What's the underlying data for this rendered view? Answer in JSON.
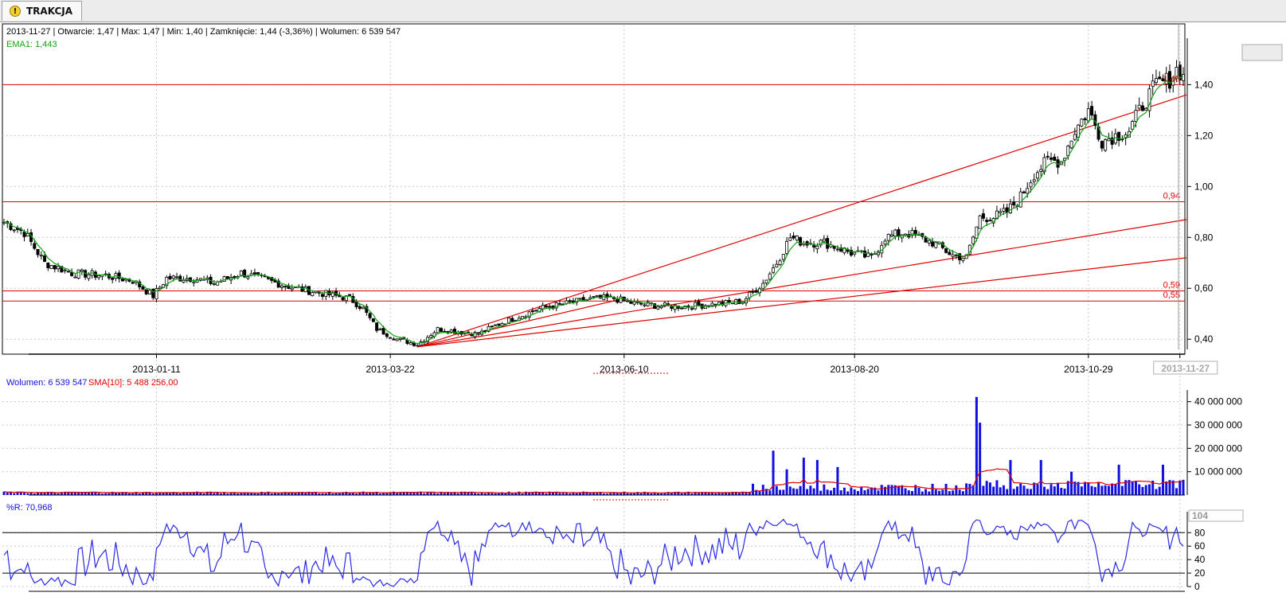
{
  "tab": {
    "label": "TRAKCJA",
    "icon": "warning-icon"
  },
  "info": {
    "line": "2013-11-27 | Otwarcie: 1,47 | Max: 1,47 | Min: 1,40 | Zamknięcie: 1,44 (-3,36%)   | Wolumen: 6 539 547",
    "ema_label": "EMA1: 1,443"
  },
  "volume_legend": {
    "volume": "Wolumen: 6 539 547",
    "sma": "SMA[10]: 5 488 256,00"
  },
  "wr_legend": "%R: 70,968",
  "colors": {
    "candle": "#000000",
    "ema": "#13a313",
    "levels": "#e00000",
    "volume": "#1010e0",
    "sma": "#e00000",
    "wr": "#2a2ae6",
    "grid": "#c8c8c8"
  },
  "chart_data": [
    {
      "type": "candlestick",
      "title": "",
      "x_tick_labels": [
        "2013-01-11",
        "2013-03-22",
        "2013-06-10",
        "2013-08-20",
        "2013-10-29",
        "2013-11-27"
      ],
      "y_tick_labels": [
        "1,40",
        "1,20",
        "1,00",
        "0,80",
        "0,60",
        "0,40"
      ],
      "ylim": [
        0.36,
        1.52
      ],
      "grid": true,
      "ema_period": 1,
      "horizontal_levels": [
        1.4,
        0.94,
        0.59,
        0.55
      ],
      "level_labels": [
        "1,40",
        "0,94",
        "0,59",
        "0,55"
      ],
      "close_anchors": [
        {
          "t": 0,
          "v": 0.86
        },
        {
          "t": 6,
          "v": 0.82
        },
        {
          "t": 12,
          "v": 0.7
        },
        {
          "t": 20,
          "v": 0.66
        },
        {
          "t": 30,
          "v": 0.65
        },
        {
          "t": 38,
          "v": 0.63
        },
        {
          "t": 44,
          "v": 0.57
        },
        {
          "t": 48,
          "v": 0.64
        },
        {
          "t": 56,
          "v": 0.64
        },
        {
          "t": 62,
          "v": 0.62
        },
        {
          "t": 70,
          "v": 0.66
        },
        {
          "t": 78,
          "v": 0.63
        },
        {
          "t": 86,
          "v": 0.6
        },
        {
          "t": 94,
          "v": 0.58
        },
        {
          "t": 102,
          "v": 0.56
        },
        {
          "t": 106,
          "v": 0.52
        },
        {
          "t": 110,
          "v": 0.44
        },
        {
          "t": 116,
          "v": 0.4
        },
        {
          "t": 122,
          "v": 0.38
        },
        {
          "t": 128,
          "v": 0.44
        },
        {
          "t": 134,
          "v": 0.43
        },
        {
          "t": 140,
          "v": 0.42
        },
        {
          "t": 146,
          "v": 0.46
        },
        {
          "t": 152,
          "v": 0.49
        },
        {
          "t": 158,
          "v": 0.52
        },
        {
          "t": 166,
          "v": 0.54
        },
        {
          "t": 174,
          "v": 0.56
        },
        {
          "t": 180,
          "v": 0.56
        },
        {
          "t": 186,
          "v": 0.54
        },
        {
          "t": 194,
          "v": 0.53
        },
        {
          "t": 202,
          "v": 0.53
        },
        {
          "t": 212,
          "v": 0.54
        },
        {
          "t": 218,
          "v": 0.55
        },
        {
          "t": 224,
          "v": 0.62
        },
        {
          "t": 228,
          "v": 0.7
        },
        {
          "t": 232,
          "v": 0.8
        },
        {
          "t": 236,
          "v": 0.78
        },
        {
          "t": 242,
          "v": 0.78
        },
        {
          "t": 250,
          "v": 0.74
        },
        {
          "t": 256,
          "v": 0.72
        },
        {
          "t": 260,
          "v": 0.8
        },
        {
          "t": 266,
          "v": 0.82
        },
        {
          "t": 274,
          "v": 0.78
        },
        {
          "t": 280,
          "v": 0.73
        },
        {
          "t": 284,
          "v": 0.72
        },
        {
          "t": 288,
          "v": 0.88
        },
        {
          "t": 292,
          "v": 0.88
        },
        {
          "t": 296,
          "v": 0.9
        },
        {
          "t": 300,
          "v": 0.96
        },
        {
          "t": 304,
          "v": 1.05
        },
        {
          "t": 308,
          "v": 1.1
        },
        {
          "t": 312,
          "v": 1.1
        },
        {
          "t": 316,
          "v": 1.22
        },
        {
          "t": 320,
          "v": 1.3
        },
        {
          "t": 324,
          "v": 1.18
        },
        {
          "t": 328,
          "v": 1.2
        },
        {
          "t": 332,
          "v": 1.22
        },
        {
          "t": 336,
          "v": 1.32
        },
        {
          "t": 340,
          "v": 1.4
        },
        {
          "t": 344,
          "v": 1.42
        },
        {
          "t": 346,
          "v": 1.46
        },
        {
          "t": 348,
          "v": 1.44
        }
      ],
      "trendlines": [
        {
          "from": [
            122,
            0.37
          ],
          "to": [
            "end",
            1.36
          ]
        },
        {
          "from": [
            122,
            0.37
          ],
          "to": [
            "end",
            0.87
          ]
        },
        {
          "from": [
            122,
            0.37
          ],
          "to": [
            "end",
            0.72
          ]
        },
        {
          "from": [
            122,
            0.37
          ],
          "to": [
            183,
            0.56
          ]
        }
      ]
    },
    {
      "type": "bar",
      "title": "",
      "series": [
        {
          "name": "Wolumen"
        },
        {
          "name": "SMA[10]"
        }
      ],
      "y_tick_labels": [
        "40 000 000",
        "30 000 000",
        "20 000 000",
        "10 000 000"
      ],
      "ylim": [
        0,
        45000000
      ],
      "volume_spikes": [
        {
          "t": 227,
          "v": 19000000
        },
        {
          "t": 231,
          "v": 11000000
        },
        {
          "t": 236,
          "v": 16000000
        },
        {
          "t": 240,
          "v": 15000000
        },
        {
          "t": 246,
          "v": 12000000
        },
        {
          "t": 287,
          "v": 42000000
        },
        {
          "t": 288,
          "v": 31000000
        },
        {
          "t": 297,
          "v": 15000000
        },
        {
          "t": 306,
          "v": 15000000
        },
        {
          "t": 315,
          "v": 10000000
        },
        {
          "t": 329,
          "v": 13000000
        },
        {
          "t": 342,
          "v": 13000000
        }
      ]
    },
    {
      "type": "line",
      "title": "",
      "series": [
        {
          "name": "%R"
        }
      ],
      "y_tick_labels": [
        "104",
        "80",
        "60",
        "40",
        "20",
        "0"
      ],
      "ylim": [
        0,
        104
      ],
      "reference_levels": [
        80,
        20
      ]
    }
  ]
}
